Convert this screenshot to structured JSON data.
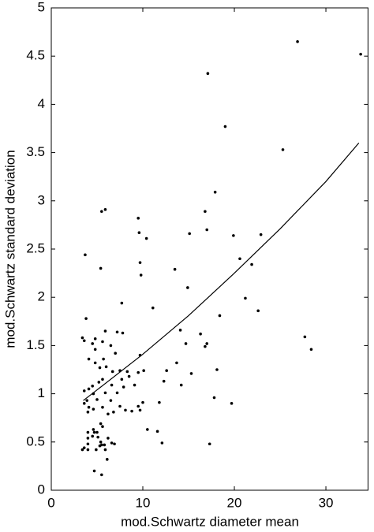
{
  "chart_data": {
    "type": "scatter",
    "xlabel": "mod.Schwartz diameter mean",
    "ylabel": "mod.Schwartz standard deviation",
    "xlim": [
      0,
      34.6
    ],
    "ylim": [
      0,
      5
    ],
    "xticks": [
      0,
      10,
      20,
      30
    ],
    "yticks": [
      0,
      0.5,
      1,
      1.5,
      2,
      2.5,
      3,
      3.5,
      4,
      4.5,
      5
    ],
    "grid": false,
    "series": [
      {
        "type": "scatter",
        "color": "#000000",
        "x": [
          33.8,
          26.9,
          17.1,
          19.0,
          25.3,
          17.9,
          16.8,
          5.9,
          5.5,
          9.5,
          9.6,
          10.4,
          15.1,
          17.0,
          19.9,
          22.9,
          3.7,
          9.7,
          20.6,
          21.9,
          5.4,
          13.5,
          9.8,
          14.9,
          21.2,
          7.7,
          22.6,
          11.1,
          18.4,
          3.8,
          16.3,
          14.1,
          7.2,
          5.9,
          7.8,
          27.7,
          3.4,
          3.6,
          4.8,
          4.5,
          5.6,
          14.7,
          17.0,
          16.8,
          28.4,
          4.8,
          6.5,
          9.7,
          4.1,
          7.0,
          13.7,
          5.7,
          4.8,
          18.1,
          12.6,
          10.1,
          7.5,
          6.7,
          8.3,
          5.3,
          6.0,
          9.5,
          12.3,
          15.3,
          7.7,
          8.5,
          5.6,
          5.2,
          14.2,
          9.1,
          7.9,
          4.5,
          6.6,
          3.6,
          4.1,
          5.9,
          7.2,
          4.6,
          5.0,
          3.9,
          3.6,
          6.5,
          10.0,
          11.8,
          19.7,
          17.8,
          4.1,
          4.6,
          5.6,
          7.5,
          9.5,
          8.1,
          4.0,
          6.8,
          8.8,
          9.7,
          6.2,
          5.4,
          5.6,
          10.5,
          11.6,
          4.0,
          4.6,
          4.7,
          5.0,
          4.5,
          5.1,
          6.2,
          4.0,
          4.0,
          5.4,
          6.6,
          6.9,
          12.1,
          17.3,
          5.5,
          5.8,
          3.6,
          3.4,
          4.0,
          4.9,
          5.3,
          5.9,
          6.1,
          4.7,
          5.5
        ],
        "values": [
          4.52,
          4.65,
          4.32,
          3.77,
          3.53,
          3.09,
          2.89,
          2.91,
          2.89,
          2.82,
          2.67,
          2.61,
          2.66,
          2.7,
          2.64,
          2.65,
          2.44,
          2.36,
          2.4,
          2.34,
          2.3,
          2.29,
          2.23,
          2.1,
          1.99,
          1.94,
          1.86,
          1.89,
          1.81,
          1.78,
          1.62,
          1.66,
          1.64,
          1.65,
          1.63,
          1.59,
          1.58,
          1.55,
          1.57,
          1.52,
          1.54,
          1.52,
          1.52,
          1.49,
          1.46,
          1.46,
          1.5,
          1.4,
          1.36,
          1.42,
          1.32,
          1.36,
          1.32,
          1.25,
          1.24,
          1.24,
          1.24,
          1.23,
          1.23,
          1.27,
          1.28,
          1.22,
          1.13,
          1.21,
          1.15,
          1.18,
          1.15,
          1.12,
          1.09,
          1.09,
          1.07,
          1.08,
          1.09,
          1.03,
          1.05,
          1.01,
          1.01,
          1.0,
          0.94,
          0.93,
          0.9,
          0.93,
          0.91,
          0.91,
          0.9,
          0.96,
          0.86,
          0.84,
          0.86,
          0.87,
          0.87,
          0.83,
          0.81,
          0.81,
          0.82,
          0.83,
          0.79,
          0.69,
          0.66,
          0.63,
          0.61,
          0.6,
          0.63,
          0.6,
          0.6,
          0.56,
          0.55,
          0.54,
          0.54,
          0.48,
          0.5,
          0.49,
          0.48,
          0.49,
          0.48,
          0.47,
          0.47,
          0.44,
          0.42,
          0.42,
          0.42,
          0.46,
          0.42,
          0.32,
          0.2,
          0.16
        ]
      },
      {
        "type": "line",
        "color": "#000000",
        "x": [
          3.5,
          5,
          10,
          15,
          20,
          25,
          30,
          33.6
        ],
        "values": [
          0.93,
          1.04,
          1.41,
          1.81,
          2.25,
          2.71,
          3.2,
          3.6
        ]
      }
    ]
  }
}
